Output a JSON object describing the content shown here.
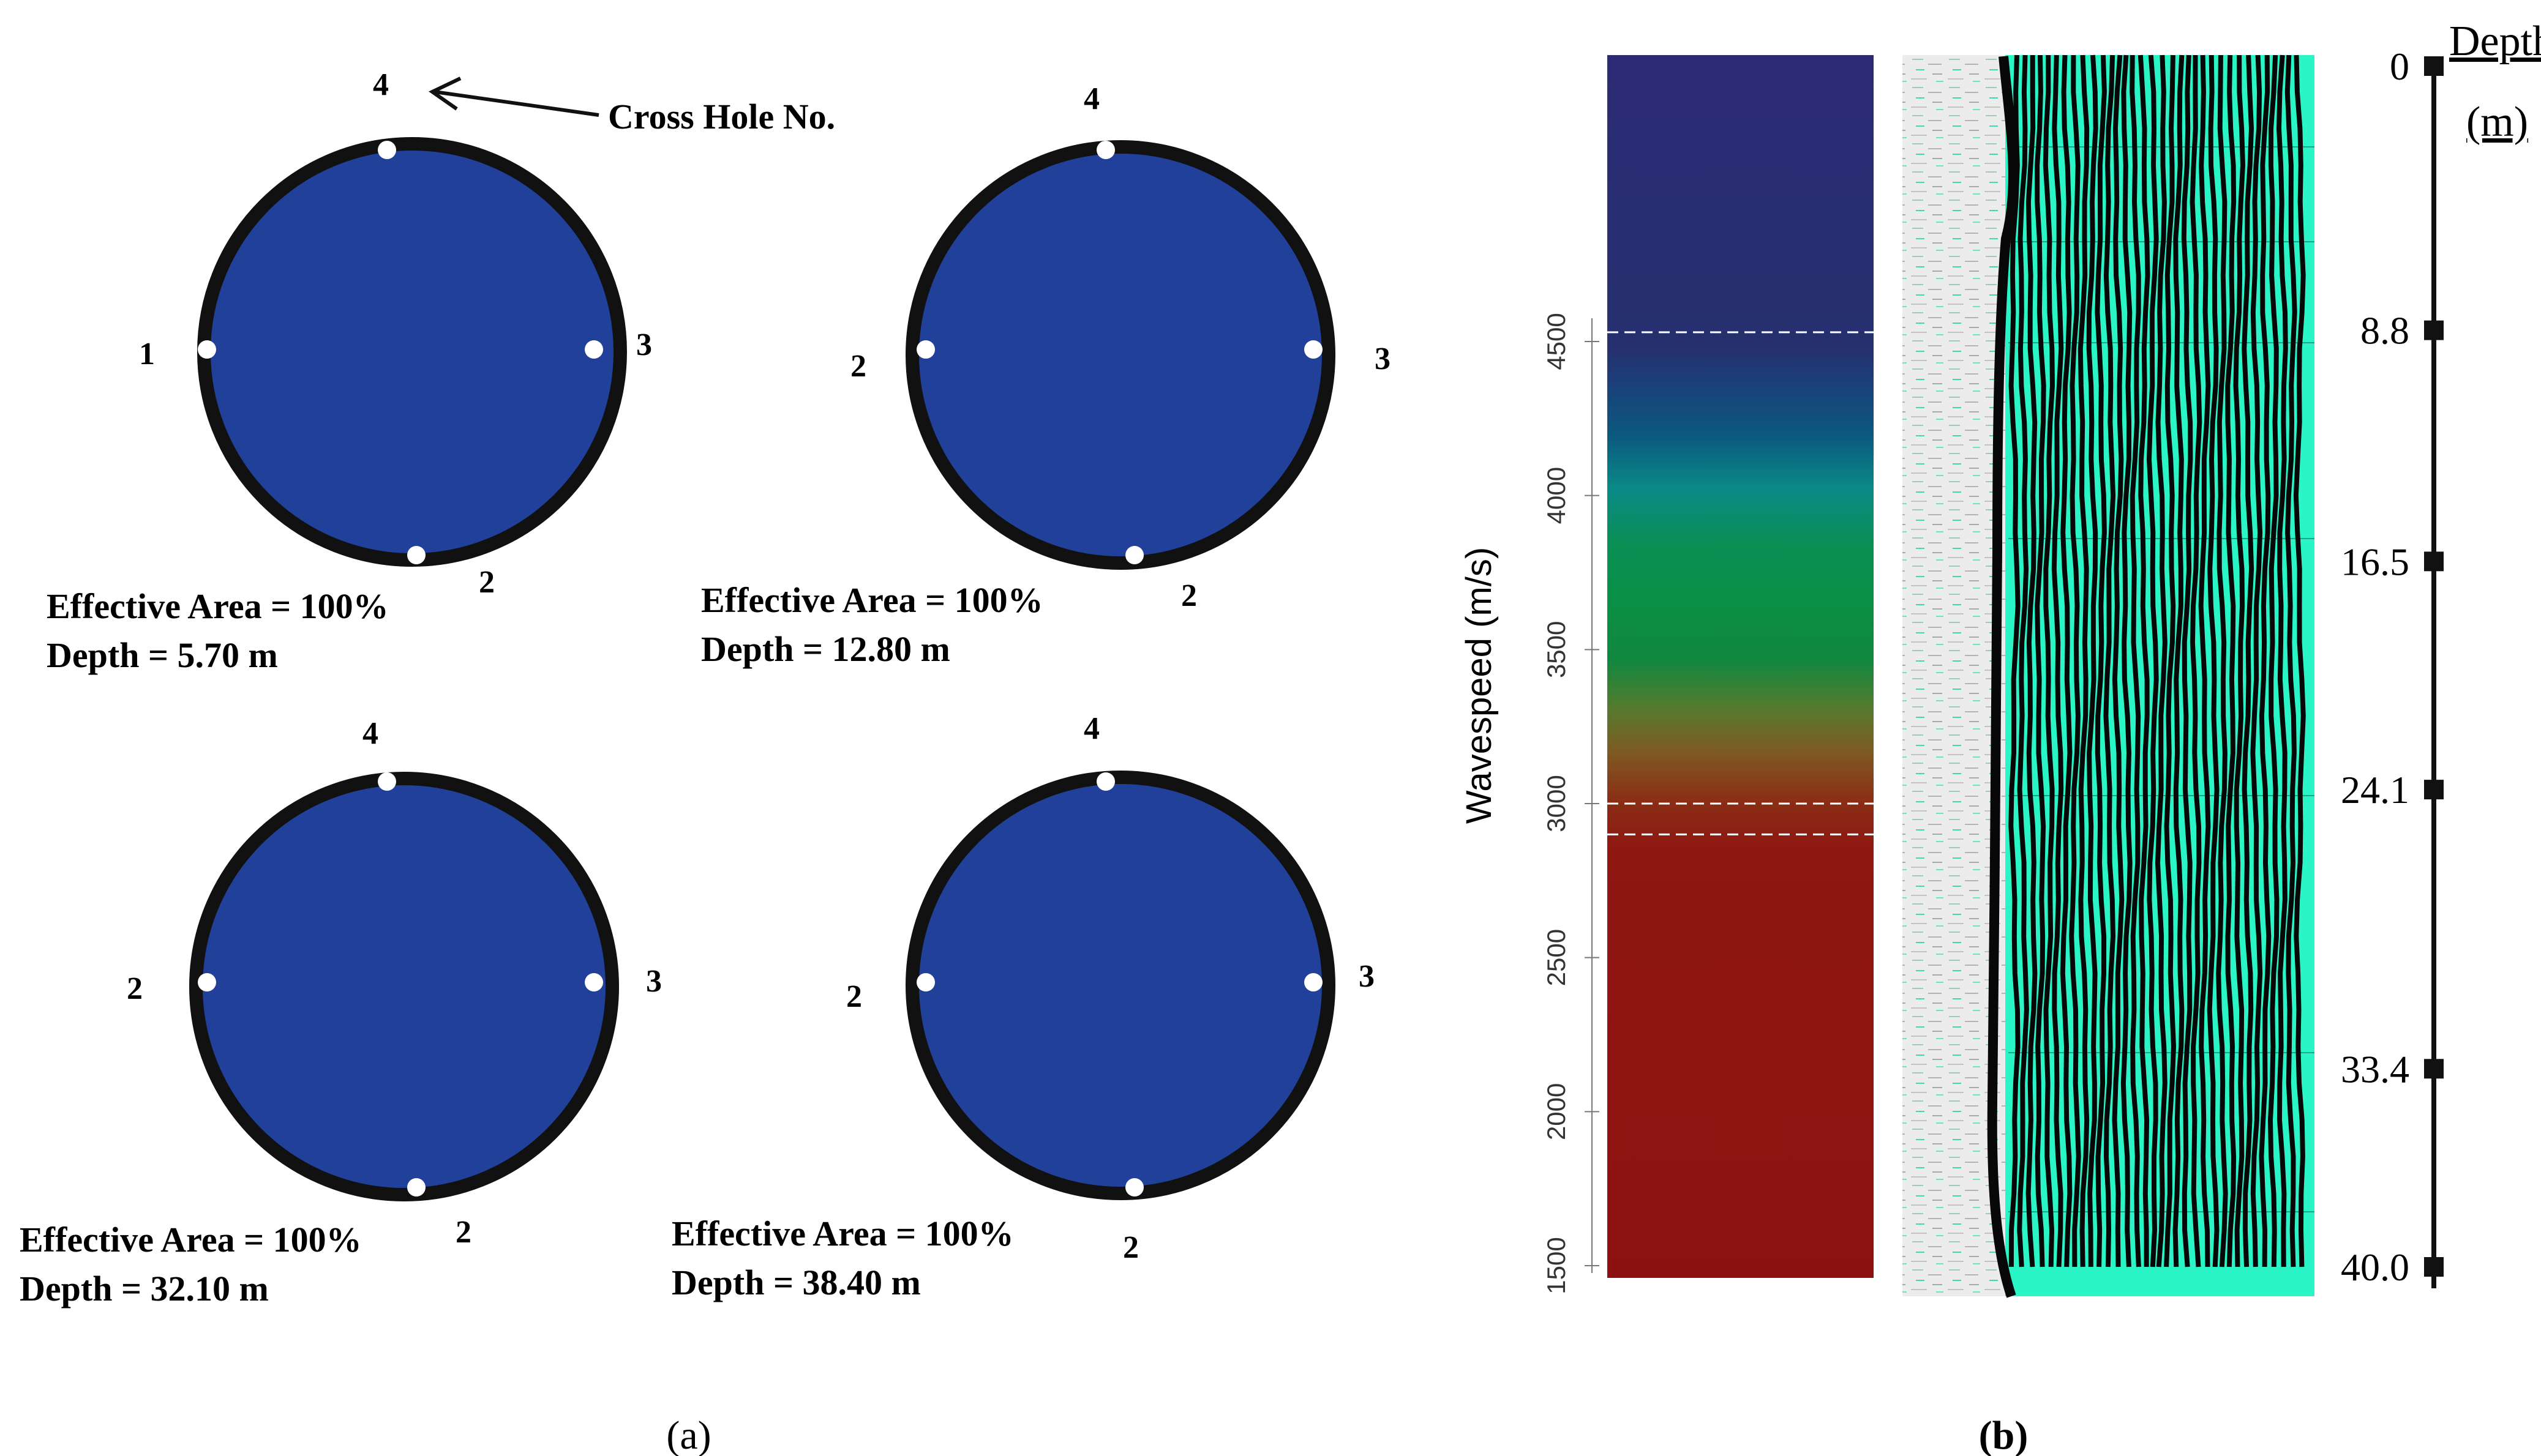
{
  "colors": {
    "pile_fill": "#21409a",
    "pile_ring": "#111111",
    "hole": "#ffffff",
    "seismic_bg": "#ececec",
    "seismic_trace": "#2af5c6",
    "seismic_dark": "#080808",
    "scale_red": "#8e1111",
    "scale_green": "#0a8f44",
    "scale_navy": "#2c2a75"
  },
  "panel_a": {
    "label": "(a)",
    "annotation": "Cross Hole No.",
    "sections": [
      {
        "id": "s1",
        "labels": {
          "top": "4",
          "left": "1",
          "right": "3",
          "bottom": "2"
        },
        "effective_area": "Effective Area = 100%",
        "depth": "Depth = 5.70 m"
      },
      {
        "id": "s2",
        "labels": {
          "top": "4",
          "left": "2",
          "right": "3",
          "bottom": "2"
        },
        "effective_area": "Effective Area = 100%",
        "depth": "Depth = 12.80 m"
      },
      {
        "id": "s3",
        "labels": {
          "top": "4",
          "left": "2",
          "right": "3",
          "bottom": "2"
        },
        "effective_area": "Effective Area = 100%",
        "depth": "Depth = 32.10 m"
      },
      {
        "id": "s4",
        "labels": {
          "top": "4",
          "left": "2",
          "right": "3",
          "bottom": "2"
        },
        "effective_area": "Effective Area = 100%",
        "depth": "Depth = 38.40 m"
      }
    ]
  },
  "panel_b": {
    "label": "(b)",
    "colorbar": {
      "axis_title": "Wavespeed (m/s)",
      "min": 1500,
      "max": 5500,
      "ticks": [
        "1500",
        "2000",
        "2500",
        "3000",
        "3500",
        "4000",
        "4500"
      ],
      "dashed_levels": [
        4530,
        3000,
        2900
      ]
    },
    "depth_scale": {
      "title_line1": "Depth",
      "title_line2": "(m)",
      "max_depth": 40,
      "marks": [
        {
          "label": "0",
          "depth": 0
        },
        {
          "label": "8.8",
          "depth": 8.8
        },
        {
          "label": "16.5",
          "depth": 16.5
        },
        {
          "label": "24.1",
          "depth": 24.1
        },
        {
          "label": "33.4",
          "depth": 33.4
        },
        {
          "label": "40.0",
          "depth": 40.0
        }
      ]
    }
  }
}
